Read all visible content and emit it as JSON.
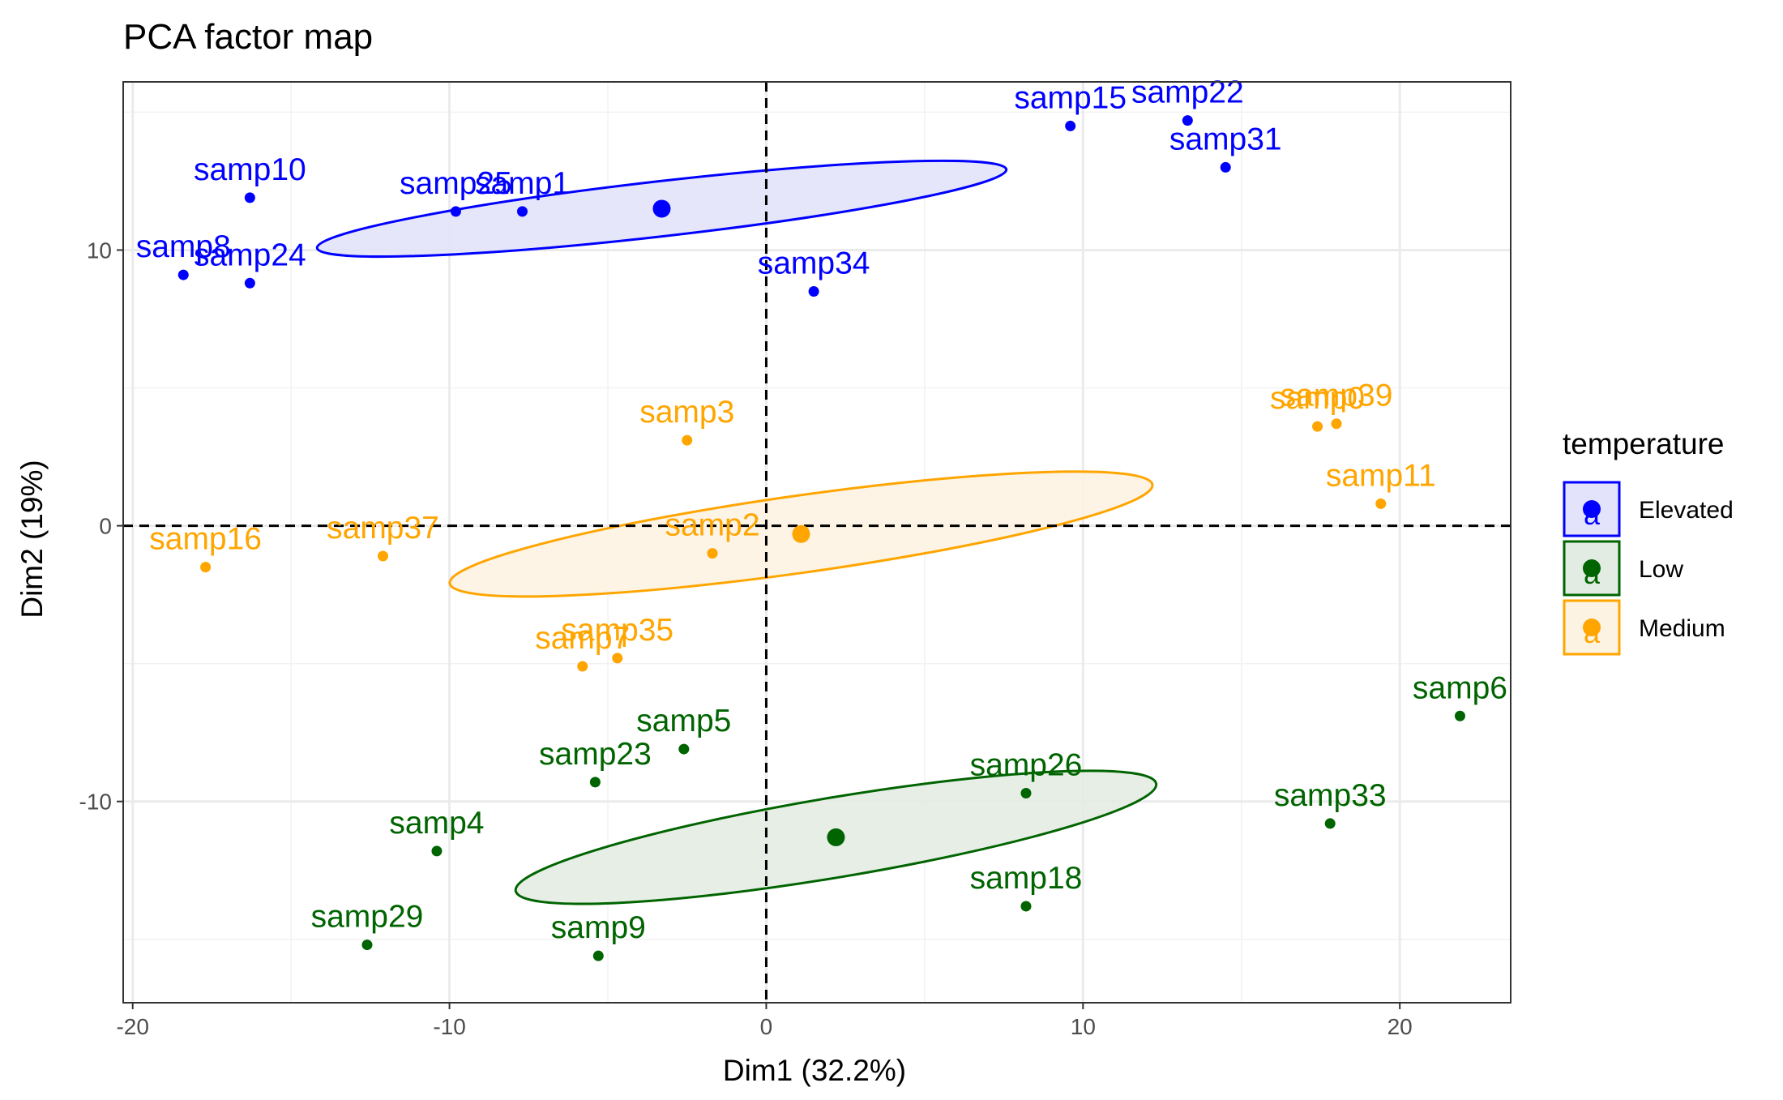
{
  "chart_data": {
    "type": "scatter",
    "title": "PCA factor map",
    "xlabel": "Dim1 (32.2%)",
    "ylabel": "Dim2 (19%)",
    "xlim": [
      -20.3,
      23.5
    ],
    "ylim": [
      -17.3,
      16.1
    ],
    "xticks": [
      -20,
      -10,
      0,
      10,
      20
    ],
    "yticks": [
      -10,
      0,
      10
    ],
    "xtick_labels": [
      "-20",
      "-10",
      "0",
      "10",
      "20"
    ],
    "ytick_labels": [
      "-10",
      "0",
      "10"
    ],
    "grid": true,
    "reference_lines": {
      "x": 0,
      "y": 0,
      "style": "dashed"
    },
    "legend": {
      "title": "temperature",
      "position": "right",
      "key_glyph": "a",
      "entries": [
        {
          "name": "Elevated",
          "color": "#0000ff"
        },
        {
          "name": "Low",
          "color": "#006400"
        },
        {
          "name": "Medium",
          "color": "#ffa500"
        }
      ]
    },
    "series": [
      {
        "name": "Elevated",
        "color": "#0000ff",
        "fill": "#e3e3fb",
        "centroid": {
          "x": -3.3,
          "y": 11.5
        },
        "ellipse": {
          "cx": -3.3,
          "cy": 11.5,
          "rx": 21.9,
          "ry": 2.0,
          "angle_deg": 6.5
        },
        "points": [
          {
            "label": "samp10",
            "x": -16.3,
            "y": 11.9
          },
          {
            "label": "samp8",
            "x": -18.4,
            "y": 9.1
          },
          {
            "label": "samp24",
            "x": -16.3,
            "y": 8.8
          },
          {
            "label": "samp25",
            "x": -9.8,
            "y": 11.4
          },
          {
            "label": "samp1",
            "x": -7.7,
            "y": 11.4
          },
          {
            "label": "samp34",
            "x": 1.5,
            "y": 8.5
          },
          {
            "label": "samp15",
            "x": 9.6,
            "y": 14.5
          },
          {
            "label": "samp22",
            "x": 13.3,
            "y": 14.7
          },
          {
            "label": "samp31",
            "x": 14.5,
            "y": 13.0
          }
        ]
      },
      {
        "name": "Medium",
        "color": "#ffa500",
        "fill": "#fdf3e2",
        "centroid": {
          "x": 1.1,
          "y": -0.3
        },
        "ellipse": {
          "cx": 1.1,
          "cy": -0.3,
          "rx": 22.4,
          "ry": 2.8,
          "angle_deg": 8.0
        },
        "points": [
          {
            "label": "samp3",
            "x": -2.5,
            "y": 3.1
          },
          {
            "label": "samp2",
            "x": -1.7,
            "y": -1.0
          },
          {
            "label": "samp16",
            "x": -17.7,
            "y": -1.5
          },
          {
            "label": "samp37",
            "x": -12.1,
            "y": -1.1
          },
          {
            "label": "samp7",
            "x": -5.8,
            "y": -5.1
          },
          {
            "label": "samp35",
            "x": -4.7,
            "y": -4.8
          },
          {
            "label": "samp0",
            "x": 17.4,
            "y": 3.6
          },
          {
            "label": "samp39",
            "x": 18.0,
            "y": 3.7
          },
          {
            "label": "samp11",
            "x": 19.4,
            "y": 0.8
          }
        ]
      },
      {
        "name": "Low",
        "color": "#006400",
        "fill": "#e3ece3",
        "centroid": {
          "x": 2.2,
          "y": -11.3
        },
        "ellipse": {
          "cx": 2.2,
          "cy": -11.3,
          "rx": 20.5,
          "ry": 2.9,
          "angle_deg": 9.5
        },
        "points": [
          {
            "label": "samp5",
            "x": -2.6,
            "y": -8.1
          },
          {
            "label": "samp23",
            "x": -5.4,
            "y": -9.3
          },
          {
            "label": "samp4",
            "x": -10.4,
            "y": -11.8
          },
          {
            "label": "samp29",
            "x": -12.6,
            "y": -15.2
          },
          {
            "label": "samp9",
            "x": -5.3,
            "y": -15.6
          },
          {
            "label": "samp26",
            "x": 8.2,
            "y": -9.7
          },
          {
            "label": "samp18",
            "x": 8.2,
            "y": -13.8
          },
          {
            "label": "samp33",
            "x": 17.8,
            "y": -10.8
          },
          {
            "label": "samp6",
            "x": 21.9,
            "y": -6.9
          }
        ]
      }
    ]
  }
}
